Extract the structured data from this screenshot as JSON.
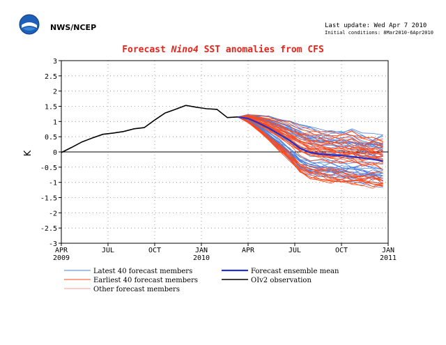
{
  "header": {
    "org": "NWS/NCEP",
    "last_update": "Last update: Wed Apr 7 2010",
    "initial_conditions": "Initial conditions: 8Mar2010-6Apr2010",
    "logo_label": "NOAA"
  },
  "chart_data": {
    "type": "line",
    "title_prefix": "Forecast ",
    "title_region": "Nino4",
    "title_suffix": " SST anomalies from CFS",
    "ylabel": "K",
    "ylim": [
      -3,
      3
    ],
    "yticks": [
      -3,
      -2.5,
      -2,
      -1.5,
      -1,
      -0.5,
      0,
      0.5,
      1,
      1.5,
      2,
      2.5,
      3
    ],
    "ytick_labels": [
      "-3",
      "-2.5",
      "-2",
      "-1.5",
      "-1",
      "-0.5",
      "0",
      "0.5",
      "1",
      "1.5",
      "2",
      "2.5",
      "3"
    ],
    "xlim": [
      0,
      21
    ],
    "xticks": [
      {
        "x": 0,
        "label": "APR",
        "sub": "2009"
      },
      {
        "x": 3,
        "label": "JUL",
        "sub": ""
      },
      {
        "x": 6,
        "label": "OCT",
        "sub": ""
      },
      {
        "x": 9,
        "label": "JAN",
        "sub": "2010"
      },
      {
        "x": 12,
        "label": "APR",
        "sub": ""
      },
      {
        "x": 15,
        "label": "JUL",
        "sub": ""
      },
      {
        "x": 18,
        "label": "OCT",
        "sub": ""
      },
      {
        "x": 21,
        "label": "JAN",
        "sub": "2011"
      }
    ],
    "grid": true,
    "observation": {
      "name": "OIv2 observation",
      "color": "#000000",
      "x": [
        0,
        0.67,
        1.33,
        2,
        2.67,
        3.33,
        4,
        4.67,
        5.33,
        6,
        6.67,
        7.33,
        8,
        8.67,
        9.33,
        10,
        10.67,
        11.33
      ],
      "y": [
        -0.02,
        0.15,
        0.33,
        0.46,
        0.58,
        0.62,
        0.67,
        0.76,
        0.8,
        1.05,
        1.28,
        1.4,
        1.53,
        1.47,
        1.42,
        1.4,
        1.13,
        1.15
      ]
    },
    "ensemble_mean": {
      "name": "Forecast ensemble mean",
      "color": "#2233cc",
      "x": [
        11.33,
        12,
        12.67,
        13.33,
        14,
        14.67,
        15.33,
        16,
        16.67,
        17.33,
        18,
        18.67,
        19.33,
        20,
        20.67
      ],
      "y": [
        1.15,
        1.1,
        0.95,
        0.78,
        0.58,
        0.38,
        0.12,
        -0.02,
        -0.07,
        -0.1,
        -0.12,
        -0.15,
        -0.2,
        -0.24,
        -0.3
      ]
    },
    "members_x": [
      11.33,
      12,
      12.67,
      13.33,
      14,
      14.67,
      15.33,
      16,
      16.67,
      17.33,
      18,
      18.67,
      19.33,
      20,
      20.67
    ],
    "latest_members": {
      "name": "Latest 40 forecast members",
      "color": "#4a7fe0",
      "count": 40,
      "spread_end": [
        -1.1,
        0.65
      ]
    },
    "earliest_members": {
      "name": "Earliest 40 forecast members",
      "color": "#ff4a1a",
      "count": 40,
      "spread_end": [
        -1.3,
        0.75
      ]
    },
    "other_members": {
      "name": "Other forecast members",
      "color": "#ff9a9a",
      "count": 4
    },
    "legend_placement": "bottom"
  }
}
